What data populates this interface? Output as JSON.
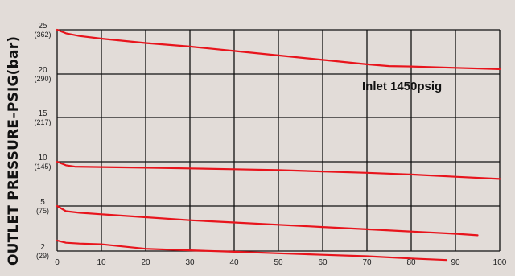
{
  "chart_data": {
    "type": "line",
    "title": "",
    "xlabel": "",
    "ylabel": "OUTLET PRESSURE–PSIG(bar)",
    "xlim": [
      0,
      100
    ],
    "x_ticks": [
      "0",
      "10",
      "20",
      "30",
      "40",
      "50",
      "60",
      "70",
      "80",
      "90",
      "100"
    ],
    "y_ticks": [
      {
        "value": 2,
        "label": "2",
        "sub": "(29)"
      },
      {
        "value": 5,
        "label": "5",
        "sub": "(75)"
      },
      {
        "value": 10,
        "label": "10",
        "sub": "(145)"
      },
      {
        "value": 15,
        "label": "15",
        "sub": "(217)"
      },
      {
        "value": 20,
        "label": "20",
        "sub": "(290)"
      },
      {
        "value": 25,
        "label": "25",
        "sub": "(362)"
      }
    ],
    "grid": true,
    "annotation": "Inlet 1450psig",
    "line_color": "#e8141c",
    "series": [
      {
        "x": [
          0,
          2,
          5,
          10,
          20,
          30,
          40,
          50,
          60,
          70,
          75,
          80,
          90,
          100
        ],
        "y": [
          25,
          24.6,
          24.3,
          24.0,
          23.5,
          23.1,
          22.6,
          22.1,
          21.6,
          21.1,
          20.9,
          20.85,
          20.7,
          20.55
        ]
      },
      {
        "x": [
          0,
          2,
          4,
          10,
          20,
          30,
          40,
          50,
          60,
          70,
          80,
          90,
          100
        ],
        "y": [
          10,
          9.6,
          9.45,
          9.4,
          9.33,
          9.25,
          9.15,
          9.05,
          8.9,
          8.75,
          8.55,
          8.3,
          8.05
        ]
      },
      {
        "x": [
          0,
          2,
          5,
          10,
          20,
          30,
          40,
          50,
          60,
          70,
          80,
          90,
          95
        ],
        "y": [
          5,
          4.65,
          4.55,
          4.45,
          4.25,
          4.05,
          3.9,
          3.75,
          3.6,
          3.45,
          3.3,
          3.15,
          3.05
        ]
      },
      {
        "x": [
          0,
          2,
          5,
          10,
          20,
          30,
          40,
          50,
          60,
          70,
          80,
          88
        ],
        "y": [
          2.7,
          2.55,
          2.5,
          2.45,
          2.15,
          2.05,
          1.95,
          1.85,
          1.75,
          1.65,
          1.5,
          1.4
        ]
      }
    ]
  }
}
